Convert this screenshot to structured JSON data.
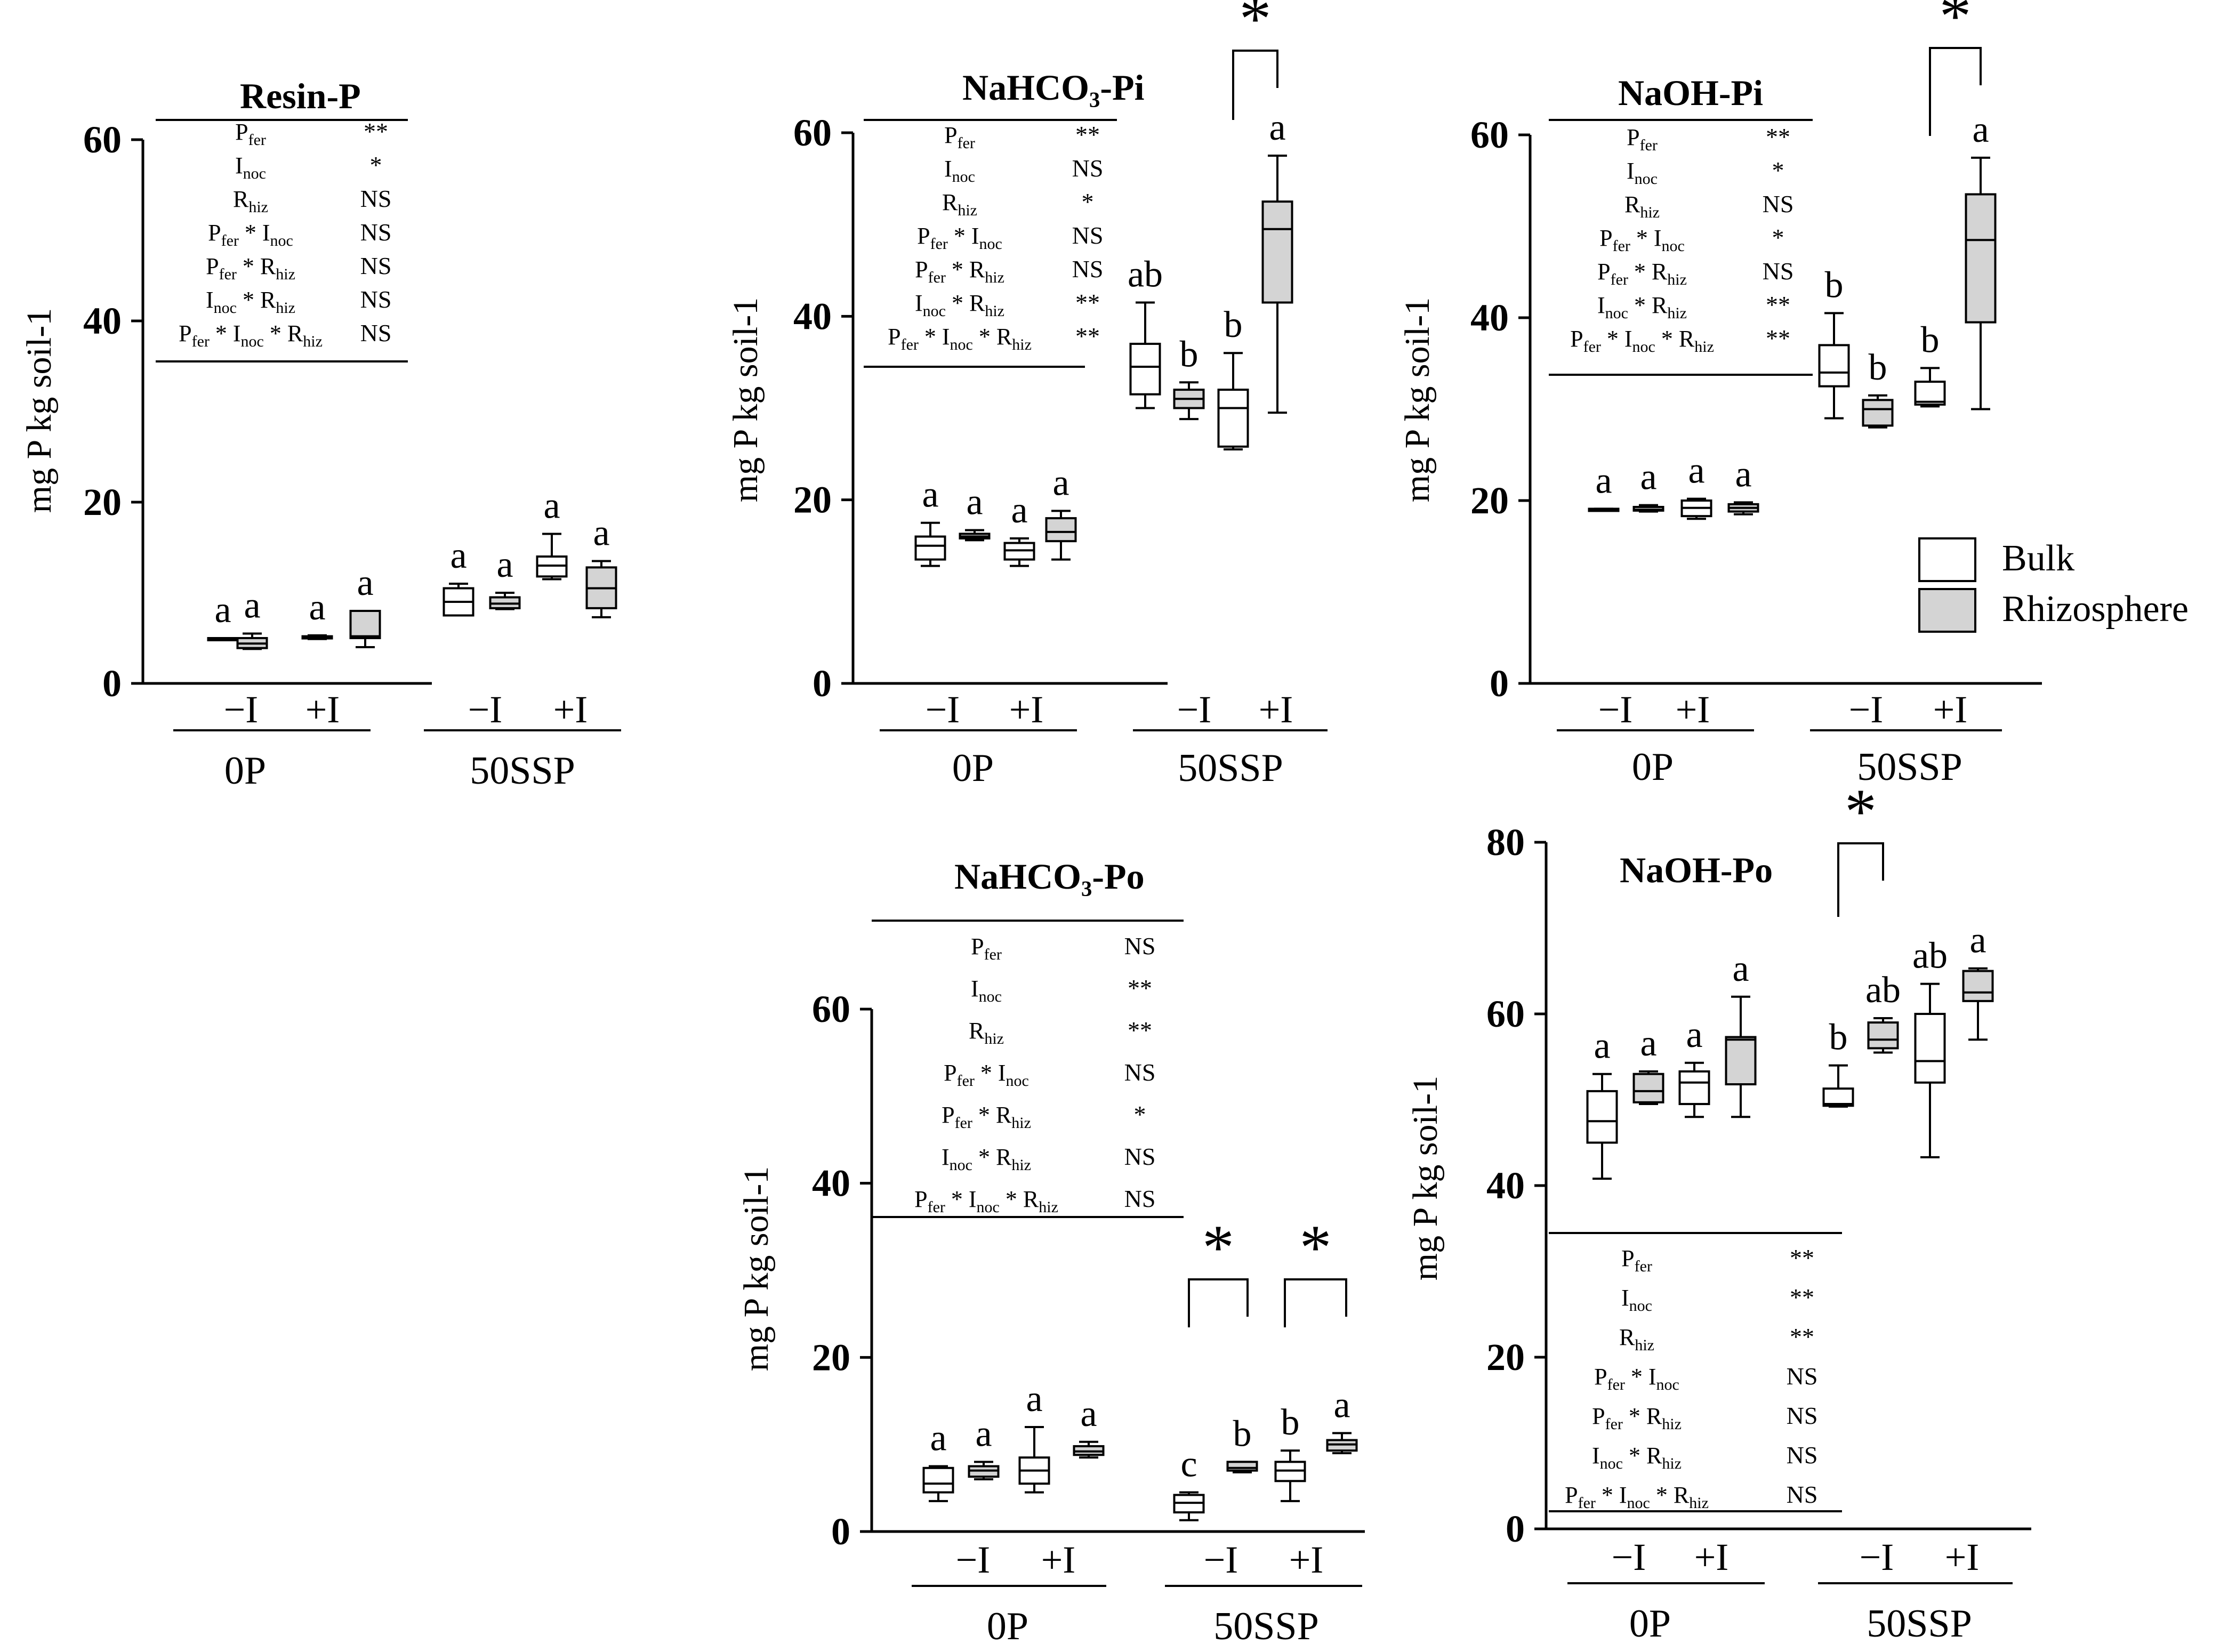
{
  "colors": {
    "bulk": "#ffffff",
    "rhizosphere": "#d4d4d4",
    "ink": "#000000"
  },
  "legend": {
    "items": [
      {
        "label": "Bulk",
        "color": "#ffffff"
      },
      {
        "label": "Rhizosphere",
        "color": "#d4d4d4"
      }
    ]
  },
  "chart_data": [
    {
      "id": "resin-p",
      "type": "box",
      "title": "Resin-P",
      "ylabel": "mg P kg soil-1",
      "ylim": [
        0,
        60
      ],
      "yticks": [
        0,
        20,
        40,
        60
      ],
      "groups": [
        "0P",
        "50SSP"
      ],
      "inoculation": [
        "−I",
        "+I"
      ],
      "boxes": [
        {
          "group": "0P",
          "inoc": "−I",
          "soil": "bulk",
          "min": 4.8,
          "q1": 4.8,
          "median": 4.9,
          "q3": 5.0,
          "max": 5.0,
          "letter": "a"
        },
        {
          "group": "0P",
          "inoc": "−I",
          "soil": "rhizosphere",
          "min": 3.8,
          "q1": 3.9,
          "median": 4.4,
          "q3": 5.0,
          "max": 5.5,
          "letter": "a"
        },
        {
          "group": "0P",
          "inoc": "+I",
          "soil": "bulk",
          "min": 4.9,
          "q1": 5.0,
          "median": 5.1,
          "q3": 5.2,
          "max": 5.3,
          "letter": "a"
        },
        {
          "group": "0P",
          "inoc": "+I",
          "soil": "rhizosphere",
          "min": 4.0,
          "q1": 5.0,
          "median": 5.2,
          "q3": 8.0,
          "max": 8.0,
          "letter": "a"
        },
        {
          "group": "50SSP",
          "inoc": "−I",
          "soil": "bulk",
          "min": 7.5,
          "q1": 7.5,
          "median": 9.0,
          "q3": 10.5,
          "max": 11.0,
          "letter": "a"
        },
        {
          "group": "50SSP",
          "inoc": "−I",
          "soil": "rhizosphere",
          "min": 8.2,
          "q1": 8.3,
          "median": 8.8,
          "q3": 9.5,
          "max": 10.0,
          "letter": "a"
        },
        {
          "group": "50SSP",
          "inoc": "+I",
          "soil": "bulk",
          "min": 11.5,
          "q1": 11.8,
          "median": 13.0,
          "q3": 14.0,
          "max": 16.5,
          "letter": "a"
        },
        {
          "group": "50SSP",
          "inoc": "+I",
          "soil": "rhizosphere",
          "min": 7.3,
          "q1": 8.3,
          "median": 10.5,
          "q3": 12.8,
          "max": 13.5,
          "letter": "a"
        }
      ],
      "stats": [
        {
          "term": "Pfer",
          "sig": "**"
        },
        {
          "term": "Inoc",
          "sig": "*"
        },
        {
          "term": "Rhiz",
          "sig": "NS"
        },
        {
          "term": "Pfer * Inoc",
          "sig": "NS"
        },
        {
          "term": "Pfer * Rhiz",
          "sig": "NS"
        },
        {
          "term": "Inoc * Rhiz",
          "sig": "NS"
        },
        {
          "term": "Pfer * Inoc * Rhiz",
          "sig": "NS"
        }
      ],
      "brackets": []
    },
    {
      "id": "nahco3-pi",
      "type": "box",
      "title": "NaHCO₃-Pi",
      "ylabel": "mg P kg soil-1",
      "ylim": [
        0,
        60
      ],
      "yticks": [
        0,
        20,
        40,
        60
      ],
      "groups": [
        "0P",
        "50SSP"
      ],
      "inoculation": [
        "−I",
        "+I"
      ],
      "boxes": [
        {
          "group": "0P",
          "inoc": "−I",
          "soil": "bulk",
          "min": 12.8,
          "q1": 13.5,
          "median": 15.0,
          "q3": 16.0,
          "max": 17.5,
          "letter": "a"
        },
        {
          "group": "0P",
          "inoc": "−I",
          "soil": "rhizosphere",
          "min": 15.6,
          "q1": 15.8,
          "median": 16.0,
          "q3": 16.3,
          "max": 16.7,
          "letter": "a"
        },
        {
          "group": "0P",
          "inoc": "+I",
          "soil": "bulk",
          "min": 12.8,
          "q1": 13.5,
          "median": 14.5,
          "q3": 15.3,
          "max": 15.8,
          "letter": "a"
        },
        {
          "group": "0P",
          "inoc": "+I",
          "soil": "rhizosphere",
          "min": 13.5,
          "q1": 15.5,
          "median": 16.5,
          "q3": 18.0,
          "max": 18.8,
          "letter": "a"
        },
        {
          "group": "50SSP",
          "inoc": "−I",
          "soil": "bulk",
          "min": 30.0,
          "q1": 31.5,
          "median": 34.5,
          "q3": 37.0,
          "max": 41.5,
          "letter": "ab"
        },
        {
          "group": "50SSP",
          "inoc": "−I",
          "soil": "rhizosphere",
          "min": 28.8,
          "q1": 30.0,
          "median": 31.0,
          "q3": 32.0,
          "max": 32.8,
          "letter": "b"
        },
        {
          "group": "50SSP",
          "inoc": "+I",
          "soil": "bulk",
          "min": 25.5,
          "q1": 25.8,
          "median": 30.0,
          "q3": 32.0,
          "max": 36.0,
          "letter": "b"
        },
        {
          "group": "50SSP",
          "inoc": "+I",
          "soil": "rhizosphere",
          "min": 29.5,
          "q1": 41.5,
          "median": 49.5,
          "q3": 52.5,
          "max": 57.5,
          "letter": "a"
        }
      ],
      "stats": [
        {
          "term": "Pfer",
          "sig": "**"
        },
        {
          "term": "Inoc",
          "sig": "NS"
        },
        {
          "term": "Rhiz",
          "sig": "*"
        },
        {
          "term": "Pfer * Inoc",
          "sig": "NS"
        },
        {
          "term": "Pfer * Rhiz",
          "sig": "NS"
        },
        {
          "term": "Inoc * Rhiz",
          "sig": "**"
        },
        {
          "term": "Pfer * Inoc * Rhiz",
          "sig": "**"
        }
      ],
      "brackets": [
        {
          "label": "*",
          "between": "50SSP +I bulk vs rhizosphere"
        }
      ]
    },
    {
      "id": "naoh-pi",
      "type": "box",
      "title": "NaOH-Pi",
      "ylabel": "mg P kg soil-1",
      "ylim": [
        0,
        60
      ],
      "yticks": [
        0,
        20,
        40,
        60
      ],
      "groups": [
        "0P",
        "50SSP"
      ],
      "inoculation": [
        "−I",
        "+I"
      ],
      "boxes": [
        {
          "group": "0P",
          "inoc": "−I",
          "soil": "bulk",
          "min": 18.9,
          "q1": 18.9,
          "median": 19.0,
          "q3": 19.1,
          "max": 19.1,
          "letter": "a"
        },
        {
          "group": "0P",
          "inoc": "−I",
          "soil": "rhizosphere",
          "min": 18.8,
          "q1": 18.9,
          "median": 19.0,
          "q3": 19.3,
          "max": 19.5,
          "letter": "a"
        },
        {
          "group": "0P",
          "inoc": "+I",
          "soil": "bulk",
          "min": 18.0,
          "q1": 18.3,
          "median": 19.2,
          "q3": 20.0,
          "max": 20.2,
          "letter": "a"
        },
        {
          "group": "0P",
          "inoc": "+I",
          "soil": "rhizosphere",
          "min": 18.5,
          "q1": 18.8,
          "median": 19.2,
          "q3": 19.6,
          "max": 19.8,
          "letter": "a"
        },
        {
          "group": "50SSP",
          "inoc": "−I",
          "soil": "bulk",
          "min": 29.0,
          "q1": 32.5,
          "median": 34.0,
          "q3": 37.0,
          "max": 40.5,
          "letter": "b"
        },
        {
          "group": "50SSP",
          "inoc": "−I",
          "soil": "rhizosphere",
          "min": 28.0,
          "q1": 28.2,
          "median": 30.0,
          "q3": 31.0,
          "max": 31.5,
          "letter": "b"
        },
        {
          "group": "50SSP",
          "inoc": "+I",
          "soil": "bulk",
          "min": 30.3,
          "q1": 30.5,
          "median": 30.8,
          "q3": 33.0,
          "max": 34.5,
          "letter": "b"
        },
        {
          "group": "50SSP",
          "inoc": "+I",
          "soil": "rhizosphere",
          "min": 30.0,
          "q1": 39.5,
          "median": 48.5,
          "q3": 53.5,
          "max": 57.5,
          "letter": "a"
        }
      ],
      "stats": [
        {
          "term": "Pfer",
          "sig": "**"
        },
        {
          "term": "Inoc",
          "sig": "*"
        },
        {
          "term": "Rhiz",
          "sig": "NS"
        },
        {
          "term": "Pfer * Inoc",
          "sig": "*"
        },
        {
          "term": "Pfer * Rhiz",
          "sig": "NS"
        },
        {
          "term": "Inoc * Rhiz",
          "sig": "**"
        },
        {
          "term": "Pfer * Inoc * Rhiz",
          "sig": "**"
        }
      ],
      "brackets": [
        {
          "label": "*",
          "between": "50SSP +I bulk vs rhizosphere"
        }
      ]
    },
    {
      "id": "nahco3-po",
      "type": "box",
      "title": "NaHCO₃-Po",
      "ylabel": "mg P kg soil-1",
      "ylim": [
        0,
        60
      ],
      "yticks": [
        0,
        20,
        40,
        60
      ],
      "groups": [
        "0P",
        "50SSP"
      ],
      "inoculation": [
        "−I",
        "+I"
      ],
      "boxes": [
        {
          "group": "0P",
          "inoc": "−I",
          "soil": "bulk",
          "min": 3.5,
          "q1": 4.5,
          "median": 5.5,
          "q3": 7.3,
          "max": 7.5,
          "letter": "a"
        },
        {
          "group": "0P",
          "inoc": "−I",
          "soil": "rhizosphere",
          "min": 6.0,
          "q1": 6.3,
          "median": 7.0,
          "q3": 7.5,
          "max": 8.0,
          "letter": "a"
        },
        {
          "group": "0P",
          "inoc": "+I",
          "soil": "bulk",
          "min": 4.5,
          "q1": 5.5,
          "median": 7.0,
          "q3": 8.5,
          "max": 12.0,
          "letter": "a"
        },
        {
          "group": "0P",
          "inoc": "+I",
          "soil": "rhizosphere",
          "min": 8.5,
          "q1": 8.8,
          "median": 9.2,
          "q3": 9.8,
          "max": 10.3,
          "letter": "a"
        },
        {
          "group": "50SSP",
          "inoc": "−I",
          "soil": "bulk",
          "min": 1.3,
          "q1": 2.2,
          "median": 3.3,
          "q3": 4.2,
          "max": 4.5,
          "letter": "c"
        },
        {
          "group": "50SSP",
          "inoc": "−I",
          "soil": "rhizosphere",
          "min": 6.8,
          "q1": 7.0,
          "median": 7.3,
          "q3": 8.0,
          "max": 8.0,
          "letter": "b"
        },
        {
          "group": "50SSP",
          "inoc": "+I",
          "soil": "bulk",
          "min": 3.5,
          "q1": 5.8,
          "median": 7.0,
          "q3": 8.0,
          "max": 9.3,
          "letter": "b"
        },
        {
          "group": "50SSP",
          "inoc": "+I",
          "soil": "rhizosphere",
          "min": 9.0,
          "q1": 9.3,
          "median": 10.0,
          "q3": 10.5,
          "max": 11.3,
          "letter": "a"
        }
      ],
      "stats": [
        {
          "term": "Pfer",
          "sig": "NS"
        },
        {
          "term": "Inoc",
          "sig": "**"
        },
        {
          "term": "Rhiz",
          "sig": "**"
        },
        {
          "term": "Pfer * Inoc",
          "sig": "NS"
        },
        {
          "term": "Pfer * Rhiz",
          "sig": "*"
        },
        {
          "term": "Inoc * Rhiz",
          "sig": "NS"
        },
        {
          "term": "Pfer * Inoc * Rhiz",
          "sig": "NS"
        }
      ],
      "brackets": [
        {
          "label": "*",
          "between": "50SSP −I bulk vs rhizosphere"
        },
        {
          "label": "*",
          "between": "50SSP +I bulk vs rhizosphere"
        }
      ]
    },
    {
      "id": "naoh-po",
      "type": "box",
      "title": "NaOH-Po",
      "ylabel": "mg P kg soil-1",
      "ylim": [
        0,
        80
      ],
      "yticks": [
        0,
        20,
        40,
        60,
        80
      ],
      "groups": [
        "0P",
        "50SSP"
      ],
      "inoculation": [
        "−I",
        "+I"
      ],
      "boxes": [
        {
          "group": "0P",
          "inoc": "−I",
          "soil": "bulk",
          "min": 40.8,
          "q1": 45.0,
          "median": 47.5,
          "q3": 51.0,
          "max": 53.0,
          "letter": "a"
        },
        {
          "group": "0P",
          "inoc": "−I",
          "soil": "rhizosphere",
          "min": 49.5,
          "q1": 49.7,
          "median": 51.0,
          "q3": 53.0,
          "max": 53.3,
          "letter": "a"
        },
        {
          "group": "0P",
          "inoc": "+I",
          "soil": "bulk",
          "min": 48.0,
          "q1": 49.5,
          "median": 52.0,
          "q3": 53.3,
          "max": 54.3,
          "letter": "a"
        },
        {
          "group": "0P",
          "inoc": "+I",
          "soil": "rhizosphere",
          "min": 48.0,
          "q1": 51.8,
          "median": 57.0,
          "q3": 57.3,
          "max": 62.0,
          "letter": "a"
        },
        {
          "group": "50SSP",
          "inoc": "−I",
          "soil": "bulk",
          "min": 49.2,
          "q1": 49.3,
          "median": 49.5,
          "q3": 51.3,
          "max": 54.0,
          "letter": "b"
        },
        {
          "group": "50SSP",
          "inoc": "−I",
          "soil": "rhizosphere",
          "min": 55.5,
          "q1": 56.0,
          "median": 57.0,
          "q3": 59.0,
          "max": 59.5,
          "letter": "ab"
        },
        {
          "group": "50SSP",
          "inoc": "+I",
          "soil": "bulk",
          "min": 43.3,
          "q1": 52.0,
          "median": 54.5,
          "q3": 60.0,
          "max": 63.5,
          "letter": "ab"
        },
        {
          "group": "50SSP",
          "inoc": "+I",
          "soil": "rhizosphere",
          "min": 57.0,
          "q1": 61.5,
          "median": 62.5,
          "q3": 65.0,
          "max": 65.3,
          "letter": "a"
        }
      ],
      "stats": [
        {
          "term": "Pfer",
          "sig": "**"
        },
        {
          "term": "Inoc",
          "sig": "**"
        },
        {
          "term": "Rhiz",
          "sig": "**"
        },
        {
          "term": "Pfer * Inoc",
          "sig": "NS"
        },
        {
          "term": "Pfer * Rhiz",
          "sig": "NS"
        },
        {
          "term": "Inoc * Rhiz",
          "sig": "NS"
        },
        {
          "term": "Pfer * Inoc * Rhiz",
          "sig": "NS"
        }
      ],
      "brackets": [
        {
          "label": "*",
          "between": "50SSP −I bulk vs rhizosphere"
        }
      ]
    }
  ]
}
